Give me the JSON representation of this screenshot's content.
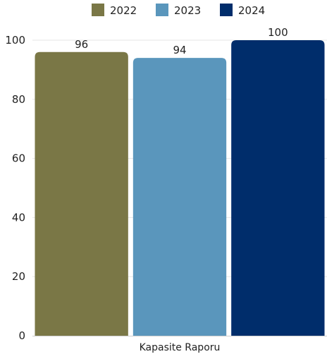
{
  "chart_data": {
    "type": "bar",
    "categories": [
      "Kapasite Raporu"
    ],
    "series": [
      {
        "name": "2022",
        "values": [
          96
        ],
        "color": "#7a7746"
      },
      {
        "name": "2023",
        "values": [
          94
        ],
        "color": "#5a96bc"
      },
      {
        "name": "2024",
        "values": [
          100
        ],
        "color": "#002d6b"
      }
    ],
    "title": "",
    "xlabel": "",
    "ylabel": "",
    "ylim": [
      0,
      100
    ],
    "yticks": [
      0,
      20,
      40,
      60,
      80,
      100
    ],
    "grid": true,
    "legend_position": "top-center",
    "data_labels": true
  }
}
